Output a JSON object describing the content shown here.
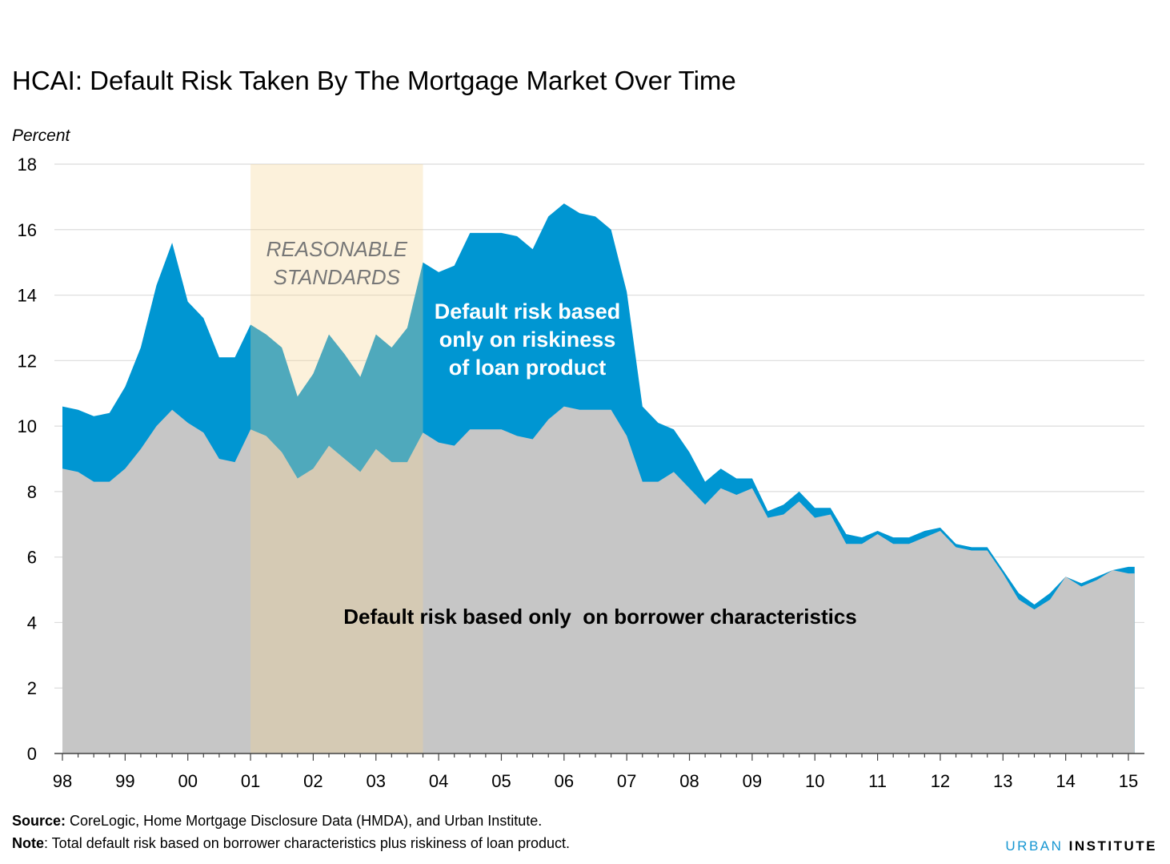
{
  "title": "HCAI: Default Risk Taken By The Mortgage Market Over Time",
  "unit_label": "Percent",
  "chart_data": {
    "type": "area",
    "title": "HCAI: Default Risk Taken By The Mortgage Market Over Time",
    "ylabel": "Percent",
    "ylim": [
      0,
      18
    ],
    "yticks": [
      0,
      2,
      4,
      6,
      8,
      10,
      12,
      14,
      16,
      18
    ],
    "xlim": [
      1998.0,
      2015.15
    ],
    "xticks": [
      {
        "value": 1998,
        "label": "98"
      },
      {
        "value": 1999,
        "label": "99"
      },
      {
        "value": 2000,
        "label": "00"
      },
      {
        "value": 2001,
        "label": "01"
      },
      {
        "value": 2002,
        "label": "02"
      },
      {
        "value": 2003,
        "label": "03"
      },
      {
        "value": 2004,
        "label": "04"
      },
      {
        "value": 2005,
        "label": "05"
      },
      {
        "value": 2006,
        "label": "06"
      },
      {
        "value": 2007,
        "label": "07"
      },
      {
        "value": 2008,
        "label": "08"
      },
      {
        "value": 2009,
        "label": "09"
      },
      {
        "value": 2010,
        "label": "10"
      },
      {
        "value": 2011,
        "label": "11"
      },
      {
        "value": 2012,
        "label": "12"
      },
      {
        "value": 2013,
        "label": "13"
      },
      {
        "value": 2014,
        "label": "14"
      },
      {
        "value": 2015,
        "label": "15"
      }
    ],
    "grid": true,
    "highlight_band": {
      "start": 2001.0,
      "end": 2003.75,
      "label_lines": [
        "REASONABLE",
        "STANDARDS"
      ],
      "color": "#fcf0da"
    },
    "x": [
      1998.0,
      1998.25,
      1998.5,
      1998.75,
      1999.0,
      1999.25,
      1999.5,
      1999.75,
      2000.0,
      2000.25,
      2000.5,
      2000.75,
      2001.0,
      2001.25,
      2001.5,
      2001.75,
      2002.0,
      2002.25,
      2002.5,
      2002.75,
      2003.0,
      2003.25,
      2003.5,
      2003.75,
      2004.0,
      2004.25,
      2004.5,
      2004.75,
      2005.0,
      2005.25,
      2005.5,
      2005.75,
      2006.0,
      2006.25,
      2006.5,
      2006.75,
      2007.0,
      2007.25,
      2007.5,
      2007.75,
      2008.0,
      2008.25,
      2008.5,
      2008.75,
      2009.0,
      2009.25,
      2009.5,
      2009.75,
      2010.0,
      2010.25,
      2010.5,
      2010.75,
      2011.0,
      2011.25,
      2011.5,
      2011.75,
      2012.0,
      2012.25,
      2012.5,
      2012.75,
      2013.0,
      2013.25,
      2013.5,
      2013.75,
      2014.0,
      2014.25,
      2014.5,
      2014.75,
      2015.0,
      2015.1
    ],
    "series": [
      {
        "name": "Default risk based only  on borrower characteristics",
        "color": "#c6c6c6",
        "values": [
          8.7,
          8.6,
          8.3,
          8.3,
          8.7,
          9.3,
          10.0,
          10.5,
          10.1,
          9.8,
          9.0,
          8.9,
          9.9,
          9.7,
          9.2,
          8.4,
          8.7,
          9.4,
          9.0,
          8.6,
          9.3,
          8.9,
          8.9,
          9.8,
          9.5,
          9.4,
          9.9,
          9.9,
          9.9,
          9.7,
          9.6,
          10.2,
          10.6,
          10.5,
          10.5,
          10.5,
          9.7,
          8.3,
          8.3,
          8.6,
          8.1,
          7.6,
          8.1,
          7.9,
          8.1,
          7.2,
          7.3,
          7.7,
          7.2,
          7.3,
          6.4,
          6.4,
          6.7,
          6.4,
          6.4,
          6.6,
          6.8,
          6.3,
          6.2,
          6.2,
          5.5,
          4.7,
          4.4,
          4.7,
          5.4,
          5.1,
          5.3,
          5.6,
          5.5,
          5.5
        ]
      },
      {
        "name": "Default risk based only on riskiness of loan product",
        "color": "#0096d2",
        "label_lines": [
          "Default risk based",
          "only on riskiness",
          "of loan product"
        ],
        "totals": [
          10.6,
          10.5,
          10.3,
          10.4,
          11.2,
          12.4,
          14.3,
          15.6,
          13.8,
          13.3,
          12.1,
          12.1,
          13.1,
          12.8,
          12.4,
          10.9,
          11.6,
          12.8,
          12.2,
          11.5,
          12.8,
          12.4,
          13.0,
          15.0,
          14.7,
          14.9,
          15.9,
          15.9,
          15.9,
          15.8,
          15.4,
          16.4,
          16.8,
          16.5,
          16.4,
          16.0,
          14.1,
          10.6,
          10.1,
          9.9,
          9.2,
          8.3,
          8.7,
          8.4,
          8.4,
          7.4,
          7.6,
          8.0,
          7.5,
          7.5,
          6.7,
          6.6,
          6.8,
          6.6,
          6.6,
          6.8,
          6.9,
          6.4,
          6.3,
          6.3,
          5.6,
          4.9,
          4.55,
          4.9,
          5.4,
          5.2,
          5.4,
          5.6,
          5.7,
          5.7
        ]
      }
    ]
  },
  "source_label": "Source:",
  "source_text": " CoreLogic, Home Mortgage Disclosure Data (HMDA), and Urban Institute.",
  "note_label": "Note",
  "note_text": ": Total default risk based on borrower characteristics plus riskiness of loan product.",
  "brand_part1": "URBAN",
  "brand_part2": "INSTITUTE",
  "colors": {
    "grid": "#dcdcdc",
    "axis": "#444444",
    "band_label": "#777777"
  }
}
